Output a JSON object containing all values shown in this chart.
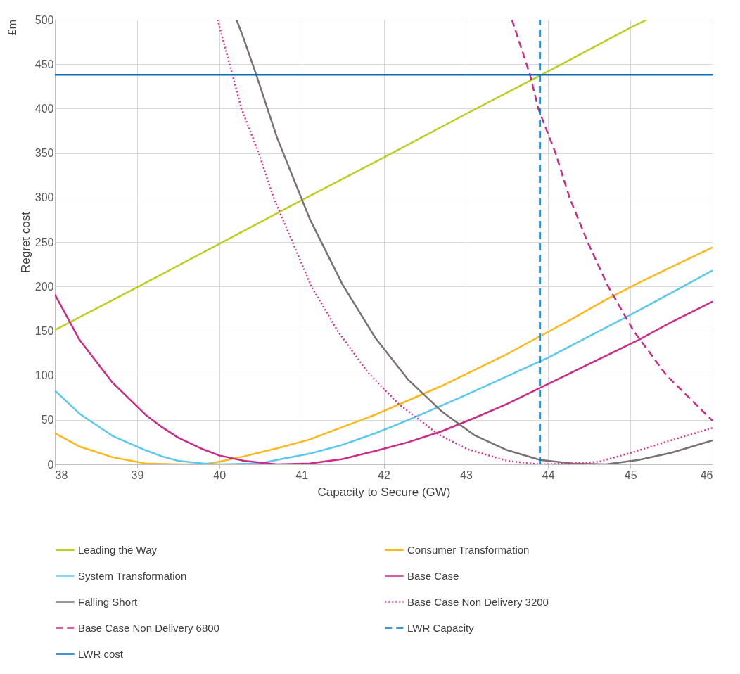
{
  "chart_data": {
    "type": "line",
    "xlabel": "Capacity to Secure (GW)",
    "ylabel": "Regret cost",
    "annotations": [
      "£m"
    ],
    "xlim": [
      38,
      46
    ],
    "xticks": [
      38,
      39,
      40,
      41,
      42,
      43,
      44,
      45,
      46
    ],
    "ylim": [
      0,
      500
    ],
    "yticks": [
      0,
      50,
      100,
      150,
      200,
      250,
      300,
      350,
      400,
      450,
      500
    ],
    "grid": true,
    "legend": "bottom",
    "marker": "none",
    "series": [
      {
        "name": "Leading the Way",
        "color": "#bccf21",
        "line_style": "solid",
        "x": [
          38,
          39,
          40,
          41,
          42,
          43,
          44,
          45,
          45.2
        ],
        "values": [
          151,
          199,
          248,
          297,
          345,
          394,
          442,
          491,
          500
        ]
      },
      {
        "name": "Consumer Transformation",
        "color": "#ffb81c",
        "line_style": "solid",
        "x": [
          38,
          38.3,
          38.7,
          39.1,
          39.5,
          39.8,
          40,
          40.3,
          40.7,
          41.1,
          41.5,
          41.9,
          42.3,
          42.7,
          43.1,
          43.5,
          43.9,
          44.3,
          44.7,
          45.1,
          45.5,
          46
        ],
        "values": [
          35,
          20,
          8,
          1,
          0,
          0,
          3,
          9,
          18,
          28,
          42,
          56,
          72,
          88,
          106,
          124,
          144,
          164,
          185,
          204,
          222,
          244
        ]
      },
      {
        "name": "System Transformation",
        "color": "#5bc8f0",
        "line_style": "solid",
        "x": [
          38,
          38.3,
          38.7,
          39.1,
          39.3,
          39.5,
          39.8,
          40,
          40.5,
          40.7,
          41.1,
          41.5,
          41.9,
          42.3,
          42.7,
          43,
          43.5,
          44,
          44.5,
          45,
          45.5,
          46
        ],
        "values": [
          83,
          57,
          32,
          16,
          9,
          4,
          1,
          0,
          1,
          5,
          12,
          22,
          35,
          50,
          66,
          78,
          99,
          120,
          144,
          168,
          193,
          218
        ]
      },
      {
        "name": "Base Case",
        "color": "#cc2a86",
        "line_style": "solid",
        "x": [
          38,
          38.3,
          38.7,
          39.1,
          39.3,
          39.5,
          39.8,
          40,
          40.3,
          40.7,
          41.1,
          41.5,
          41.9,
          42.3,
          42.7,
          43.1,
          43.5,
          43.9,
          44.3,
          44.7,
          45.1,
          45.5,
          46
        ],
        "values": [
          191,
          140,
          92,
          56,
          42,
          30,
          17,
          10,
          4,
          0,
          1,
          6,
          15,
          25,
          37,
          52,
          68,
          86,
          104,
          122,
          140,
          160,
          183
        ]
      },
      {
        "name": "Falling Short",
        "color": "#7a7173",
        "line_style": "solid",
        "x": [
          40.21,
          40.3,
          40.45,
          40.7,
          41.1,
          41.5,
          41.9,
          42.3,
          42.7,
          43.1,
          43.5,
          43.9,
          44.3,
          44.7,
          45.1,
          45.5,
          46
        ],
        "values": [
          500,
          478,
          438,
          368,
          276,
          202,
          142,
          95,
          60,
          33,
          16,
          5,
          1,
          0,
          5,
          13,
          27
        ]
      },
      {
        "name": "Base Case Non Delivery 3200",
        "color": "#d8358f",
        "line_style": "dotted",
        "x": [
          39.98,
          40.16,
          40.27,
          40.48,
          40.66,
          40.89,
          41.12,
          41.44,
          41.81,
          42.18,
          42.66,
          43.02,
          43.5,
          43.9,
          44.3,
          44.62,
          45.01,
          45.46,
          46
        ],
        "values": [
          500,
          438,
          400,
          350,
          300,
          250,
          200,
          150,
          103,
          68,
          34,
          17,
          4,
          0,
          1,
          3,
          13,
          26,
          41
        ]
      },
      {
        "name": "Base Case Non Delivery 6800",
        "color": "#cc2a86",
        "line_style": "dashed",
        "x": [
          43.56,
          43.78,
          43.88,
          44.09,
          44.26,
          44.48,
          44.73,
          45.04,
          45.44,
          46
        ],
        "values": [
          500,
          438,
          400,
          350,
          300,
          250,
          200,
          150,
          100,
          49
        ]
      },
      {
        "name": "LWR Capacity",
        "color": "#0070c0",
        "line_style": "dashed",
        "x": [
          43.9,
          43.9
        ],
        "values": [
          0,
          500
        ]
      },
      {
        "name": "LWR cost",
        "color": "#0070c0",
        "line_style": "solid",
        "x": [
          38,
          46
        ],
        "values": [
          438,
          438
        ]
      }
    ]
  }
}
